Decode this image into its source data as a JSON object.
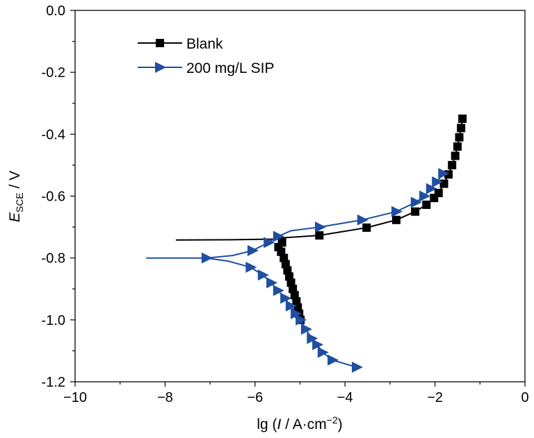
{
  "chart_data": {
    "type": "line",
    "title": "",
    "xlabel": {
      "prefix": "lg (",
      "italic": "I",
      "middle": " / A·cm",
      "sup": "−2",
      "suffix": ")"
    },
    "ylabel": {
      "italic": "E",
      "sub": "SCE",
      "suffix": " / V"
    },
    "xlim": [
      -10,
      0
    ],
    "ylim": [
      -1.2,
      0.0
    ],
    "xticks": [
      -10,
      -8,
      -6,
      -4,
      -2,
      0
    ],
    "xtick_labels": [
      "−10",
      "−8",
      "−6",
      "−4",
      "−2",
      "0"
    ],
    "yticks": [
      0.0,
      -0.2,
      -0.4,
      -0.6,
      -0.8,
      -1.0,
      -1.2
    ],
    "ytick_labels": [
      "0.0",
      "-0.2",
      "-0.4",
      "-0.6",
      "-0.8",
      "-1.0",
      "-1.2"
    ],
    "grid": false,
    "legend_position": "top-left",
    "series": [
      {
        "name": "Blank",
        "color": "#000000",
        "marker": "square",
        "line": [
          [
            -7.76,
            -0.742
          ],
          [
            -6.5,
            -0.741
          ],
          [
            -5.6,
            -0.739
          ],
          [
            -5.42,
            -0.735
          ],
          [
            -4.57,
            -0.727
          ],
          [
            -3.52,
            -0.702
          ],
          [
            -2.86,
            -0.677
          ],
          [
            -2.44,
            -0.65
          ],
          [
            -2.19,
            -0.628
          ],
          [
            -2.02,
            -0.606
          ],
          [
            -1.92,
            -0.59
          ],
          [
            -1.8,
            -0.56
          ],
          [
            -1.7,
            -0.53
          ],
          [
            -1.62,
            -0.5
          ],
          [
            -1.55,
            -0.47
          ],
          [
            -1.5,
            -0.44
          ],
          [
            -1.46,
            -0.41
          ],
          [
            -1.42,
            -0.38
          ],
          [
            -1.39,
            -0.35
          ]
        ],
        "line2": [
          [
            -5.42,
            -0.735
          ],
          [
            -5.48,
            -0.77
          ],
          [
            -5.36,
            -0.81
          ],
          [
            -5.28,
            -0.84
          ],
          [
            -5.2,
            -0.88
          ],
          [
            -5.12,
            -0.92
          ],
          [
            -5.05,
            -0.96
          ],
          [
            -4.99,
            -1.0
          ]
        ],
        "markers": [
          [
            -4.99,
            -1.0
          ],
          [
            -5.02,
            -0.98
          ],
          [
            -5.05,
            -0.96
          ],
          [
            -5.08,
            -0.94
          ],
          [
            -5.12,
            -0.92
          ],
          [
            -5.16,
            -0.9
          ],
          [
            -5.2,
            -0.88
          ],
          [
            -5.24,
            -0.86
          ],
          [
            -5.28,
            -0.84
          ],
          [
            -5.32,
            -0.82
          ],
          [
            -5.36,
            -0.8
          ],
          [
            -5.42,
            -0.78
          ],
          [
            -5.48,
            -0.765
          ],
          [
            -5.4,
            -0.75
          ],
          [
            -4.57,
            -0.727
          ],
          [
            -3.52,
            -0.702
          ],
          [
            -2.86,
            -0.677
          ],
          [
            -2.44,
            -0.65
          ],
          [
            -2.19,
            -0.628
          ],
          [
            -2.02,
            -0.606
          ],
          [
            -1.92,
            -0.59
          ],
          [
            -1.8,
            -0.56
          ],
          [
            -1.7,
            -0.53
          ],
          [
            -1.62,
            -0.5
          ],
          [
            -1.55,
            -0.47
          ],
          [
            -1.5,
            -0.44
          ],
          [
            -1.46,
            -0.41
          ],
          [
            -1.42,
            -0.38
          ],
          [
            -1.39,
            -0.35
          ]
        ]
      },
      {
        "name": "200 mg/L SIP",
        "color": "#1f4fa0",
        "marker": "triangle-right",
        "line": [
          [
            -8.42,
            -0.8
          ],
          [
            -7.08,
            -0.8
          ],
          [
            -6.5,
            -0.792
          ],
          [
            -6.06,
            -0.776
          ],
          [
            -5.7,
            -0.75
          ],
          [
            -5.49,
            -0.73
          ],
          [
            -5.2,
            -0.712
          ],
          [
            -4.56,
            -0.7
          ],
          [
            -3.62,
            -0.677
          ],
          [
            -2.86,
            -0.65
          ],
          [
            -2.43,
            -0.62
          ],
          [
            -2.24,
            -0.6
          ],
          [
            -2.09,
            -0.576
          ],
          [
            -1.96,
            -0.554
          ],
          [
            -1.82,
            -0.527
          ]
        ],
        "line2": [
          [
            -7.08,
            -0.8
          ],
          [
            -6.6,
            -0.81
          ],
          [
            -6.1,
            -0.83
          ],
          [
            -5.83,
            -0.855
          ],
          [
            -5.64,
            -0.88
          ],
          [
            -5.49,
            -0.905
          ],
          [
            -5.33,
            -0.93
          ],
          [
            -5.21,
            -0.955
          ],
          [
            -5.1,
            -0.98
          ],
          [
            -4.99,
            -1.0
          ],
          [
            -4.87,
            -1.03
          ],
          [
            -4.74,
            -1.06
          ],
          [
            -4.62,
            -1.08
          ],
          [
            -4.5,
            -1.105
          ],
          [
            -4.28,
            -1.13
          ],
          [
            -3.74,
            -1.153
          ]
        ],
        "markers": [
          [
            -7.08,
            -0.8
          ],
          [
            -6.06,
            -0.776
          ],
          [
            -5.7,
            -0.75
          ],
          [
            -5.49,
            -0.73
          ],
          [
            -4.56,
            -0.7
          ],
          [
            -3.62,
            -0.677
          ],
          [
            -2.86,
            -0.65
          ],
          [
            -2.43,
            -0.62
          ],
          [
            -2.24,
            -0.6
          ],
          [
            -2.09,
            -0.576
          ],
          [
            -1.96,
            -0.554
          ],
          [
            -1.82,
            -0.527
          ],
          [
            -6.1,
            -0.83
          ],
          [
            -5.83,
            -0.855
          ],
          [
            -5.64,
            -0.88
          ],
          [
            -5.49,
            -0.905
          ],
          [
            -5.33,
            -0.93
          ],
          [
            -5.21,
            -0.955
          ],
          [
            -5.1,
            -0.98
          ],
          [
            -4.99,
            -1.0
          ],
          [
            -4.87,
            -1.03
          ],
          [
            -4.74,
            -1.06
          ],
          [
            -4.62,
            -1.08
          ],
          [
            -4.5,
            -1.105
          ],
          [
            -4.28,
            -1.13
          ],
          [
            -3.74,
            -1.153
          ]
        ]
      }
    ]
  }
}
